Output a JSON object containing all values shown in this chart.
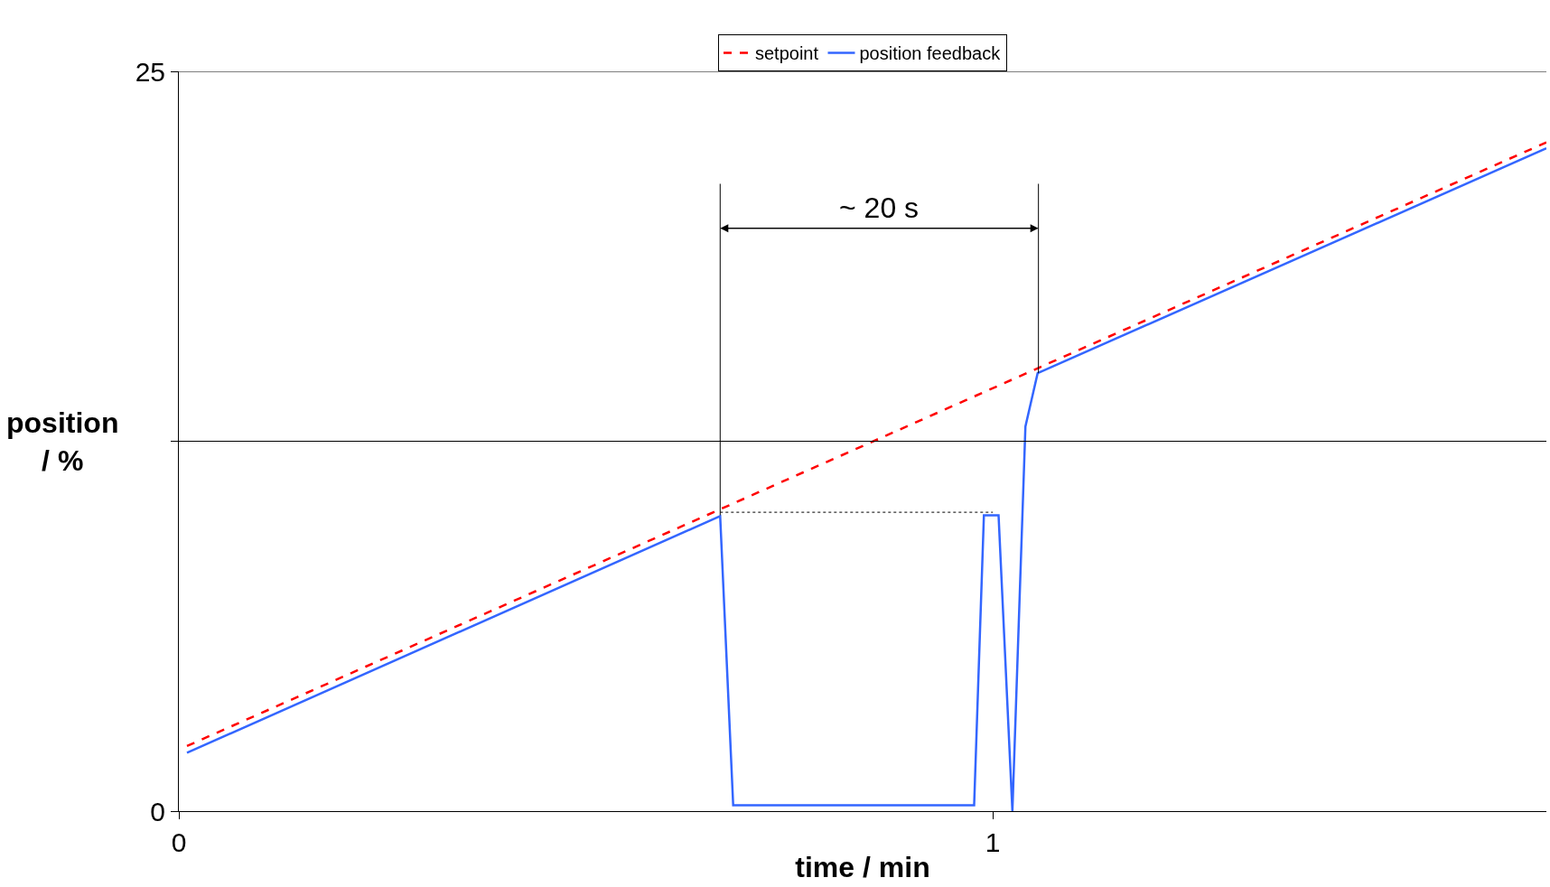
{
  "chart_data": {
    "type": "line",
    "xlabel": "time / min",
    "ylabel": "position / %",
    "xlim": [
      0,
      1.68
    ],
    "xticks": [
      0,
      1
    ],
    "ylim": [
      0,
      25
    ],
    "yticks": [
      0,
      {
        "value": 12.5,
        "label": null
      },
      25
    ],
    "legend": "top",
    "marker": "none",
    "ref_lines": [
      {
        "axis": "y",
        "value": 12.5,
        "color": "#000000"
      },
      {
        "axis": "y",
        "value": 25,
        "color": "#000000"
      }
    ],
    "series": [
      {
        "name": "setpoint",
        "color": "#ff0000",
        "line_style": "dashed",
        "x": [
          0.01,
          1.68
        ],
        "values": [
          2.2,
          22.6
        ]
      },
      {
        "name": "position feedback",
        "color": "#3366ff",
        "line_style": "solid",
        "x": [
          0.01,
          0.665,
          0.681,
          0.977,
          0.989,
          1.007,
          1.024,
          1.04,
          1.055,
          1.68
        ],
        "values": [
          1.97,
          9.97,
          0.2,
          0.2,
          10.0,
          10.0,
          0,
          13.0,
          14.8,
          22.4
        ]
      },
      {
        "color": "#000000",
        "line_style": "dotted",
        "x": [
          0.665,
          1.0
        ],
        "values": [
          10.1,
          10.1
        ]
      },
      {
        "color": "#000000",
        "line_style": "solid",
        "x": [
          0.665,
          0.665
        ],
        "values": [
          21.2,
          10.0
        ]
      },
      {
        "color": "#000000",
        "line_style": "solid",
        "x": [
          1.056,
          1.056
        ],
        "values": [
          21.2,
          14.8
        ]
      }
    ],
    "annotations": [
      "~ 20 s"
    ]
  }
}
